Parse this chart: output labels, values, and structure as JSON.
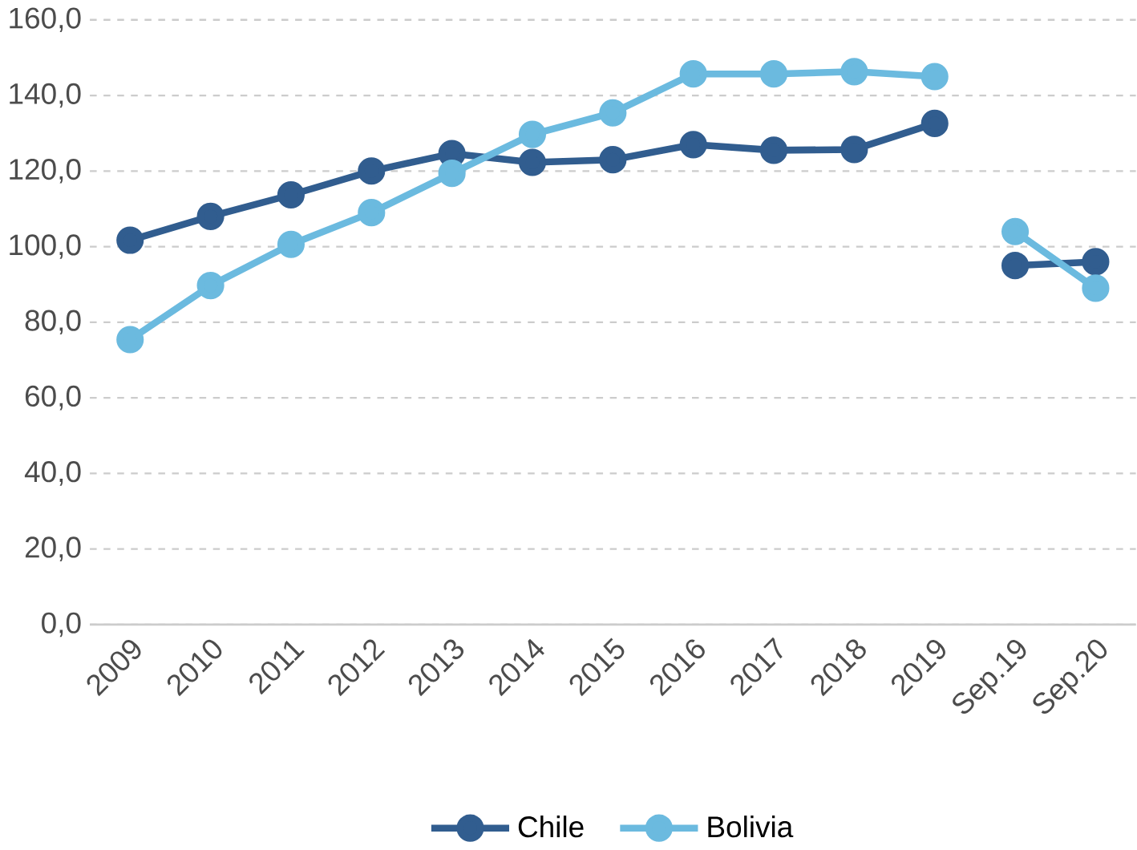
{
  "chart_data": {
    "type": "line",
    "categories": [
      "2009",
      "2010",
      "2011",
      "2012",
      "2013",
      "2014",
      "2015",
      "2016",
      "2017",
      "2018",
      "2019",
      "Sep.19",
      "Sep.20"
    ],
    "series": [
      {
        "name": "Chile",
        "color": "#315d8f",
        "values": [
          101.7,
          108,
          113.7,
          120,
          124.6,
          122.3,
          123,
          127,
          125.5,
          125.7,
          132.6,
          null,
          null
        ]
      },
      {
        "name": "Bolivia",
        "color": "#6bbadf",
        "values": [
          75.4,
          89.7,
          100.6,
          109,
          119.4,
          129.7,
          135.4,
          145.7,
          145.7,
          146.3,
          145,
          null,
          null
        ]
      },
      {
        "color": "#315d8f",
        "values": [
          null,
          null,
          null,
          null,
          null,
          null,
          null,
          null,
          null,
          null,
          null,
          95,
          96
        ]
      },
      {
        "color": "#6bbadf",
        "values": [
          null,
          null,
          null,
          null,
          null,
          null,
          null,
          null,
          null,
          null,
          null,
          104,
          89
        ]
      }
    ],
    "ylim": [
      0,
      160
    ],
    "yticks": [
      {
        "value": 0,
        "label": "0,0"
      },
      {
        "value": 20,
        "label": "20,0"
      },
      {
        "value": 40,
        "label": "40,0"
      },
      {
        "value": 60,
        "label": "60,0"
      },
      {
        "value": 80,
        "label": "80,0"
      },
      {
        "value": 100,
        "label": "100,0"
      },
      {
        "value": 120,
        "label": "120,0"
      },
      {
        "value": 140,
        "label": "140,0"
      },
      {
        "value": 160,
        "label": "160,0"
      }
    ],
    "grid": "y",
    "legend": "bottom",
    "marker": "circle",
    "line_style": "solid"
  }
}
